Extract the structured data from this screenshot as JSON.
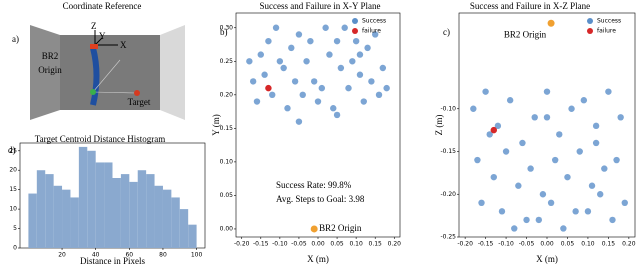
{
  "diagram": {
    "title": "Coordinate Reference",
    "panel_label": "a)",
    "axes": [
      "Z",
      "Y",
      "X"
    ],
    "origin_label": [
      "BR2",
      "Origin"
    ],
    "target_label": "Target"
  },
  "chart_data": [
    {
      "type": "histogram",
      "panel_label": "d)",
      "title": "Target Centroid Distance Histogram",
      "xlabel": "Distance in Pixels",
      "color": "#8aa9cf",
      "bins": [
        0,
        5,
        10,
        15,
        20,
        25,
        30,
        35,
        40,
        45,
        50,
        55,
        60,
        65,
        70,
        75,
        80,
        85,
        90,
        95,
        100
      ],
      "values": [
        14,
        20,
        19,
        16,
        15,
        13,
        26,
        25,
        22,
        22,
        18,
        19,
        17,
        20,
        19,
        16,
        15,
        13,
        10,
        6
      ],
      "xlim": [
        -5,
        105
      ],
      "xticks": [
        20,
        40,
        60,
        80,
        100
      ],
      "ylim": [
        0,
        27
      ],
      "yticks": [
        0,
        5,
        10,
        15,
        20,
        25
      ]
    },
    {
      "type": "scatter",
      "panel_label": "b)",
      "title": "Success and Failure in X-Y Plane",
      "xlabel": "X (m)",
      "ylabel": "Y (m)",
      "legend": "upper right",
      "xlim": [
        -0.215,
        0.215
      ],
      "ylim": [
        -0.012,
        0.322
      ],
      "xticks": [
        {
          "value": -0.2,
          "label": "-0.20"
        },
        {
          "value": -0.15,
          "label": "-0.15"
        },
        {
          "value": -0.1,
          "label": "-0.10"
        },
        {
          "value": -0.05,
          "label": "-0.05"
        },
        {
          "value": 0,
          "label": "0.00"
        },
        {
          "value": 0.05,
          "label": "0.05"
        },
        {
          "value": 0.1,
          "label": "0.10"
        },
        {
          "value": 0.15,
          "label": "0.15"
        },
        {
          "value": 0.2,
          "label": "0.20"
        }
      ],
      "yticks": [
        {
          "value": 0,
          "label": "0.00"
        },
        {
          "value": 0.05,
          "label": "0.05"
        },
        {
          "value": 0.1,
          "label": "0.10"
        },
        {
          "value": 0.15,
          "label": "0.15"
        },
        {
          "value": 0.2,
          "label": "0.20"
        },
        {
          "value": 0.25,
          "label": "0.25"
        },
        {
          "value": 0.3,
          "label": "0.30"
        }
      ],
      "series": [
        {
          "name": "Success",
          "color": "#5b8fc9",
          "x": [
            -0.17,
            -0.15,
            -0.13,
            -0.11,
            -0.09,
            -0.07,
            -0.05,
            -0.03,
            -0.01,
            0.01,
            0.03,
            0.05,
            0.07,
            0.09,
            0.11,
            0.13,
            0.15,
            0.17,
            -0.16,
            -0.12,
            -0.08,
            -0.04,
            0.0,
            0.04,
            0.08,
            0.12,
            0.16,
            -0.14,
            -0.1,
            -0.06,
            -0.02,
            0.02,
            0.06,
            0.1,
            0.14,
            -0.18,
            0.18,
            -0.05,
            0.05,
            0.11
          ],
          "y": [
            0.22,
            0.26,
            0.28,
            0.3,
            0.24,
            0.27,
            0.29,
            0.25,
            0.22,
            0.21,
            0.26,
            0.28,
            0.3,
            0.25,
            0.23,
            0.27,
            0.29,
            0.24,
            0.19,
            0.2,
            0.18,
            0.2,
            0.19,
            0.18,
            0.21,
            0.19,
            0.2,
            0.23,
            0.25,
            0.22,
            0.28,
            0.3,
            0.24,
            0.28,
            0.22,
            0.25,
            0.21,
            0.16,
            0.17,
            0.26
          ]
        },
        {
          "name": "failure",
          "color": "#d62728",
          "x": [
            -0.13
          ],
          "y": [
            0.21
          ]
        }
      ],
      "origin": {
        "label": "BR2 Origin",
        "x": -0.01,
        "y": 0.0,
        "color": "#f0a030"
      },
      "annotations": [
        "Success Rate: 99.8%",
        "Avg. Steps to Goal: 3.98"
      ]
    },
    {
      "type": "scatter",
      "panel_label": "c)",
      "title": "Success and Failure in X-Z Plane",
      "xlabel": "X (m)",
      "ylabel": "Z (m)",
      "legend": "upper right",
      "xlim": [
        -0.215,
        0.215
      ],
      "ylim": [
        -0.25,
        0.012
      ],
      "xticks": [
        {
          "value": -0.2,
          "label": "-0.20"
        },
        {
          "value": -0.15,
          "label": "-0.15"
        },
        {
          "value": -0.1,
          "label": "-0.10"
        },
        {
          "value": -0.05,
          "label": "-0.05"
        },
        {
          "value": 0,
          "label": "0.00"
        },
        {
          "value": 0.05,
          "label": "0.05"
        },
        {
          "value": 0.1,
          "label": "0.10"
        },
        {
          "value": 0.15,
          "label": "0.15"
        },
        {
          "value": 0.2,
          "label": "0.20"
        }
      ],
      "yticks": [
        {
          "value": -0.25,
          "label": "-0.25"
        },
        {
          "value": -0.2,
          "label": "-0.20"
        },
        {
          "value": -0.15,
          "label": "-0.15"
        },
        {
          "value": -0.1,
          "label": "-0.10"
        }
      ],
      "series": [
        {
          "name": "Success",
          "color": "#5b8fc9",
          "x": [
            -0.18,
            -0.15,
            -0.12,
            -0.09,
            -0.06,
            -0.03,
            0.0,
            0.03,
            0.06,
            0.09,
            0.12,
            0.15,
            0.18,
            -0.17,
            -0.13,
            -0.1,
            -0.07,
            -0.04,
            -0.01,
            0.02,
            0.05,
            0.08,
            0.11,
            0.14,
            0.17,
            -0.16,
            -0.11,
            -0.05,
            0.01,
            0.07,
            0.13,
            0.19,
            -0.08,
            -0.02,
            0.04,
            0.1,
            0.16,
            -0.14,
            0.0,
            0.12
          ],
          "y": [
            -0.1,
            -0.08,
            -0.12,
            -0.09,
            -0.14,
            -0.11,
            -0.08,
            -0.13,
            -0.1,
            -0.09,
            -0.12,
            -0.08,
            -0.11,
            -0.16,
            -0.18,
            -0.15,
            -0.19,
            -0.17,
            -0.2,
            -0.16,
            -0.18,
            -0.15,
            -0.19,
            -0.17,
            -0.16,
            -0.21,
            -0.22,
            -0.23,
            -0.21,
            -0.22,
            -0.2,
            -0.21,
            -0.24,
            -0.23,
            -0.24,
            -0.22,
            -0.23,
            -0.13,
            -0.11,
            -0.14
          ]
        },
        {
          "name": "failure",
          "color": "#d62728",
          "x": [
            -0.13
          ],
          "y": [
            -0.125
          ]
        }
      ],
      "origin": {
        "label": "BR2 Origin",
        "x": 0.01,
        "y": 0.0,
        "color": "#f0a030"
      }
    }
  ]
}
